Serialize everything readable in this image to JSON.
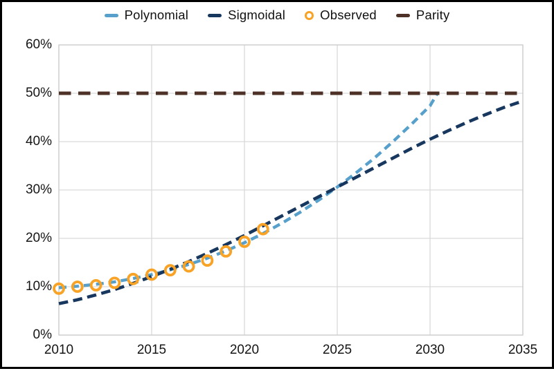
{
  "chart_data": {
    "type": "line",
    "title": "",
    "x_axis": {
      "label": "",
      "ticks": [
        2010,
        2015,
        2020,
        2025,
        2030,
        2035
      ],
      "range": [
        2010,
        2035
      ]
    },
    "y_axis": {
      "label": "",
      "tick_values": [
        0,
        10,
        20,
        30,
        40,
        50,
        60
      ],
      "ticks": [
        "0%",
        "10%",
        "20%",
        "30%",
        "40%",
        "50%",
        "60%"
      ],
      "range": [
        0,
        60
      ],
      "unit": "%"
    },
    "grid": true,
    "colors": {
      "polynomial": "#56a0cb",
      "sigmoidal": "#17375e",
      "observed": "#f8a326",
      "parity": "#4e3126",
      "gridline": "#d9d9d9",
      "plot_border": "#cccccc",
      "frame_border": "#000000"
    },
    "legend": {
      "position": "top",
      "entries": [
        {
          "label": "Polynomial",
          "marker": "dash",
          "color": "#56a0cb"
        },
        {
          "label": "Sigmoidal",
          "marker": "dash",
          "color": "#17375e"
        },
        {
          "label": "Observed",
          "marker": "ring",
          "color": "#f8a326"
        },
        {
          "label": "Parity",
          "marker": "dash",
          "color": "#4e3126"
        }
      ]
    },
    "series": [
      {
        "name": "Polynomial",
        "kind": "line",
        "style": "dashed",
        "color": "#56a0cb",
        "points": [
          [
            2010,
            9.8
          ],
          [
            2011,
            10.1
          ],
          [
            2012,
            10.5
          ],
          [
            2013,
            11.0
          ],
          [
            2014,
            11.7
          ],
          [
            2015,
            12.5
          ],
          [
            2016,
            13.5
          ],
          [
            2017,
            14.6
          ],
          [
            2018,
            15.9
          ],
          [
            2019,
            17.4
          ],
          [
            2020,
            19.1
          ],
          [
            2021,
            21.0
          ],
          [
            2022,
            23.1
          ],
          [
            2023,
            25.4
          ],
          [
            2024,
            27.9
          ],
          [
            2025,
            30.6
          ],
          [
            2026,
            33.5
          ],
          [
            2027,
            36.6
          ],
          [
            2028,
            40.0
          ],
          [
            2029,
            43.6
          ],
          [
            2030,
            47.4
          ],
          [
            2030.4,
            50.0
          ]
        ]
      },
      {
        "name": "Sigmoidal",
        "kind": "line",
        "style": "dashed",
        "color": "#17375e",
        "points": [
          [
            2010,
            6.5
          ],
          [
            2011,
            7.3
          ],
          [
            2012,
            8.3
          ],
          [
            2013,
            9.4
          ],
          [
            2014,
            10.7
          ],
          [
            2015,
            12.1
          ],
          [
            2016,
            13.6
          ],
          [
            2017,
            15.2
          ],
          [
            2018,
            16.9
          ],
          [
            2019,
            18.7
          ],
          [
            2020,
            20.6
          ],
          [
            2021,
            22.6
          ],
          [
            2022,
            24.6
          ],
          [
            2023,
            26.6
          ],
          [
            2024,
            28.6
          ],
          [
            2025,
            30.6
          ],
          [
            2026,
            32.6
          ],
          [
            2027,
            34.6
          ],
          [
            2028,
            36.6
          ],
          [
            2029,
            38.6
          ],
          [
            2030,
            40.5
          ],
          [
            2031,
            42.3
          ],
          [
            2032,
            44.0
          ],
          [
            2033,
            45.6
          ],
          [
            2034,
            47.1
          ],
          [
            2035,
            48.4
          ]
        ]
      },
      {
        "name": "Observed",
        "kind": "scatter",
        "marker": "ring",
        "color": "#f8a326",
        "points": [
          [
            2010,
            9.6
          ],
          [
            2011,
            10.0
          ],
          [
            2012,
            10.3
          ],
          [
            2013,
            10.8
          ],
          [
            2014,
            11.6
          ],
          [
            2015,
            12.5
          ],
          [
            2016,
            13.4
          ],
          [
            2017,
            14.2
          ],
          [
            2018,
            15.4
          ],
          [
            2019,
            17.3
          ],
          [
            2020,
            19.3
          ],
          [
            2021,
            21.9
          ]
        ]
      },
      {
        "name": "Parity",
        "kind": "line",
        "style": "dashed",
        "color": "#4e3126",
        "points": [
          [
            2010,
            50
          ],
          [
            2035,
            50
          ]
        ]
      }
    ]
  }
}
